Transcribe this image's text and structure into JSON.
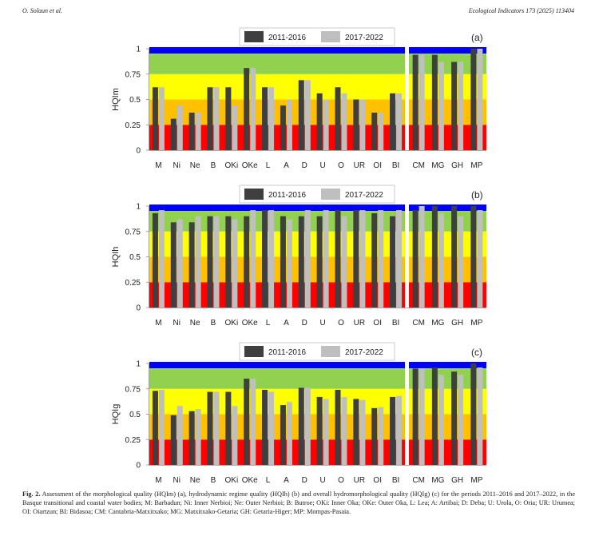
{
  "header": {
    "authors": "O. Solaun et al.",
    "journal": "Ecological Indicators 173 (2025) 113404"
  },
  "colors": {
    "high": "#0000ff",
    "good": "#92d050",
    "moderate": "#ffff00",
    "poor": "#ffc000",
    "bad": "#ff0000",
    "series_2011": "#3f3f3f",
    "series_2017": "#bfbfbf"
  },
  "caption": {
    "label": "Fig. 2.",
    "text": "Assessment of the morphological quality (HQIm) (a), hydrodynamic regime quality (HQIh) (b) and overall hydromorphological quality (HQIg) (c) for the periods 2011–2016 and 2017–2022, in the Basque transitional and coastal water bodies; M: Barbadun; Ni: Inner Nerbioi; Ne: Outer Nerbioi; B: Butroe; OKi: Inner Oka; OKe: Outer Oka, L: Lea; A: Artibai; D: Deba; U: Urola, O: Oria; UR: Urumea; OI: Oiartzun; BI: Bidasoa; CM: Cantabria-Matxitxako; MG: Matxitxako-Getaria; GH: Getaria-Higer; MP: Mompas-Pasaia."
  },
  "chart_data": [
    {
      "type": "bar",
      "panel_label": "(a)",
      "ylabel": "HQIm",
      "ylim": [
        0,
        1
      ],
      "yticks": [
        "0",
        "0.25",
        "0.5",
        "0.75",
        "1"
      ],
      "legend_position": "top-center",
      "categories": [
        "M",
        "Ni",
        "Ne",
        "B",
        "OKi",
        "OKe",
        "L",
        "A",
        "D",
        "U",
        "O",
        "UR",
        "OI",
        "BI",
        "CM",
        "MG",
        "GH",
        "MP"
      ],
      "series": [
        {
          "name": "2011-2016",
          "values": [
            0.62,
            0.31,
            0.37,
            0.62,
            0.62,
            0.81,
            0.62,
            0.44,
            0.69,
            0.56,
            0.62,
            0.5,
            0.37,
            0.56,
            0.94,
            0.94,
            0.87,
            1.0
          ]
        },
        {
          "name": "2017-2022",
          "values": [
            0.62,
            0.44,
            0.37,
            0.62,
            0.44,
            0.81,
            0.62,
            0.5,
            0.69,
            0.5,
            0.56,
            0.5,
            0.37,
            0.56,
            0.94,
            0.87,
            0.87,
            1.0
          ]
        }
      ]
    },
    {
      "type": "bar",
      "panel_label": "(b)",
      "ylabel": "HQIh",
      "ylim": [
        0,
        1
      ],
      "yticks": [
        "0",
        "0.25",
        "0.5",
        "0.75",
        "1"
      ],
      "legend_position": "top-center",
      "categories": [
        "M",
        "Ni",
        "Ne",
        "B",
        "OKi",
        "OKe",
        "L",
        "A",
        "D",
        "U",
        "O",
        "UR",
        "OI",
        "BI",
        "CM",
        "MG",
        "GH",
        "MP"
      ],
      "series": [
        {
          "name": "2011-2016",
          "values": [
            0.93,
            0.84,
            0.84,
            0.9,
            0.9,
            0.9,
            0.96,
            0.9,
            0.9,
            0.9,
            0.96,
            0.96,
            0.93,
            0.9,
            0.96,
            1.0,
            1.0,
            1.0
          ]
        },
        {
          "name": "2017-2022",
          "values": [
            0.96,
            0.87,
            0.9,
            0.9,
            0.87,
            0.96,
            0.96,
            0.87,
            0.96,
            0.96,
            0.9,
            0.96,
            0.96,
            0.96,
            1.0,
            0.93,
            0.9,
            0.96
          ]
        }
      ]
    },
    {
      "type": "bar",
      "panel_label": "(c)",
      "ylabel": "HQIg",
      "ylim": [
        0,
        1
      ],
      "yticks": [
        "0",
        "0.25",
        "0.5",
        "0.75",
        "1"
      ],
      "legend_position": "top-center",
      "categories": [
        "M",
        "Ni",
        "Ne",
        "B",
        "OKi",
        "OKe",
        "L",
        "A",
        "D",
        "U",
        "O",
        "UR",
        "OI",
        "BI",
        "CM",
        "MG",
        "GH",
        "MP"
      ],
      "series": [
        {
          "name": "2011-2016",
          "values": [
            0.73,
            0.49,
            0.53,
            0.72,
            0.72,
            0.85,
            0.74,
            0.59,
            0.76,
            0.67,
            0.74,
            0.65,
            0.56,
            0.67,
            0.95,
            0.96,
            0.92,
            1.0
          ]
        },
        {
          "name": "2017-2022",
          "values": [
            0.74,
            0.58,
            0.55,
            0.72,
            0.58,
            0.85,
            0.72,
            0.62,
            0.76,
            0.65,
            0.67,
            0.64,
            0.57,
            0.68,
            0.95,
            0.89,
            0.89,
            0.96
          ]
        }
      ]
    }
  ]
}
